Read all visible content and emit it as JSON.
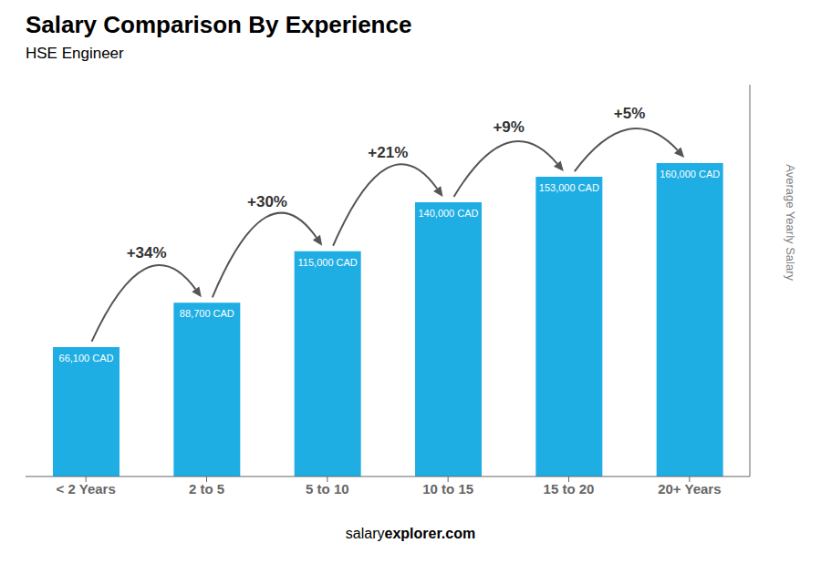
{
  "chart_data": {
    "type": "bar",
    "title": "Salary Comparison By Experience",
    "subtitle": "HSE Engineer",
    "categories": [
      "< 2 Years",
      "2 to 5",
      "5 to 10",
      "10 to 15",
      "15 to 20",
      "20+ Years"
    ],
    "values": [
      66100,
      88700,
      115000,
      140000,
      153000,
      160000
    ],
    "value_labels": [
      "66,100 CAD",
      "88,700 CAD",
      "115,000 CAD",
      "140,000 CAD",
      "153,000 CAD",
      "160,000 CAD"
    ],
    "data_labels": true,
    "color": "#1EAEE4",
    "ylim": [
      0,
      200000
    ],
    "y_label": "Average Yearly Salary",
    "annotations": [
      "+34%",
      "+30%",
      "+21%",
      "+9%",
      "+5%"
    ],
    "footer": [
      "salary",
      "explorer.com"
    ],
    "tick_labels": "x",
    "grid": false
  }
}
